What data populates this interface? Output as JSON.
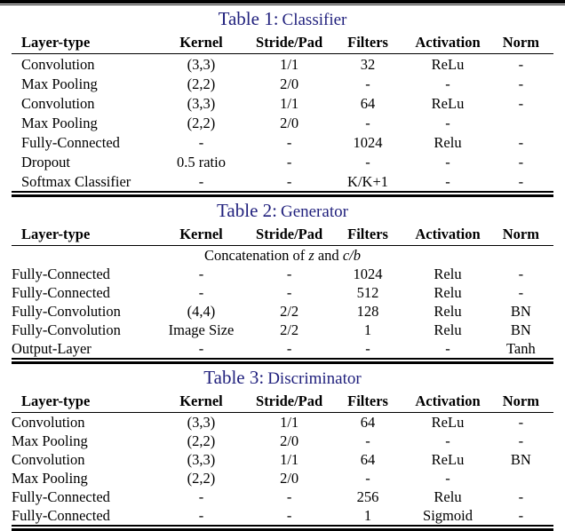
{
  "theme": {
    "caption_color": "#1f1f7c",
    "rule_color": "#000000",
    "text_color": "#000000",
    "background": "#ffffff"
  },
  "tables": [
    {
      "caption_label": "Table 1:",
      "caption_title": "Classifier",
      "columns": [
        "Layer-type",
        "Kernel",
        "Stride/Pad",
        "Filters",
        "Activation",
        "Norm"
      ],
      "rows": [
        [
          "Convolution",
          "(3,3)",
          "1/1",
          "32",
          "ReLu",
          "-"
        ],
        [
          "Max Pooling",
          "(2,2)",
          "2/0",
          "-",
          "-",
          "-"
        ],
        [
          "Convolution",
          "(3,3)",
          "1/1",
          "64",
          "ReLu",
          "-"
        ],
        [
          "Max Pooling",
          "(2,2)",
          "2/0",
          "-",
          "-",
          ""
        ],
        [
          "Fully-Connected",
          "-",
          "-",
          "1024",
          "Relu",
          "-"
        ],
        [
          "Dropout",
          "0.5 ratio",
          "-",
          "-",
          "-",
          "-"
        ],
        [
          "Softmax Classifier",
          "-",
          "-",
          "K/K+1",
          "-",
          "-"
        ]
      ]
    },
    {
      "caption_label": "Table 2:",
      "caption_title": "Generator",
      "columns": [
        "Layer-type",
        "Kernel",
        "Stride/Pad",
        "Filters",
        "Activation",
        "Norm"
      ],
      "span_row": {
        "text_prefix": "Concatenation of ",
        "var_z": "z",
        "text_mid": " and ",
        "var_cb": "c/b"
      },
      "rows": [
        [
          "Fully-Connected",
          "-",
          "-",
          "1024",
          "Relu",
          "-"
        ],
        [
          "Fully-Connected",
          "-",
          "-",
          "512",
          "Relu",
          "-"
        ],
        [
          "Fully-Convolution",
          "(4,4)",
          "2/2",
          "128",
          "Relu",
          "BN"
        ],
        [
          "Fully-Convolution",
          "Image Size",
          "2/2",
          "1",
          "Relu",
          "BN"
        ],
        [
          "Output-Layer",
          "-",
          "-",
          "-",
          "-",
          "Tanh"
        ]
      ]
    },
    {
      "caption_label": "Table 3:",
      "caption_title": "Discriminator",
      "columns": [
        "Layer-type",
        "Kernel",
        "Stride/Pad",
        "Filters",
        "Activation",
        "Norm"
      ],
      "rows": [
        [
          "Convolution",
          "(3,3)",
          "1/1",
          "64",
          "ReLu",
          "-"
        ],
        [
          "Max Pooling",
          "(2,2)",
          "2/0",
          "-",
          "-",
          "-"
        ],
        [
          "Convolution",
          "(3,3)",
          "1/1",
          "64",
          "ReLu",
          "BN"
        ],
        [
          "Max Pooling",
          "(2,2)",
          "2/0",
          "-",
          "-",
          ""
        ],
        [
          "Fully-Connected",
          "-",
          "-",
          "256",
          "Relu",
          "-"
        ],
        [
          "Fully-Connected",
          "-",
          "-",
          "1",
          "Sigmoid",
          "-"
        ]
      ]
    }
  ]
}
